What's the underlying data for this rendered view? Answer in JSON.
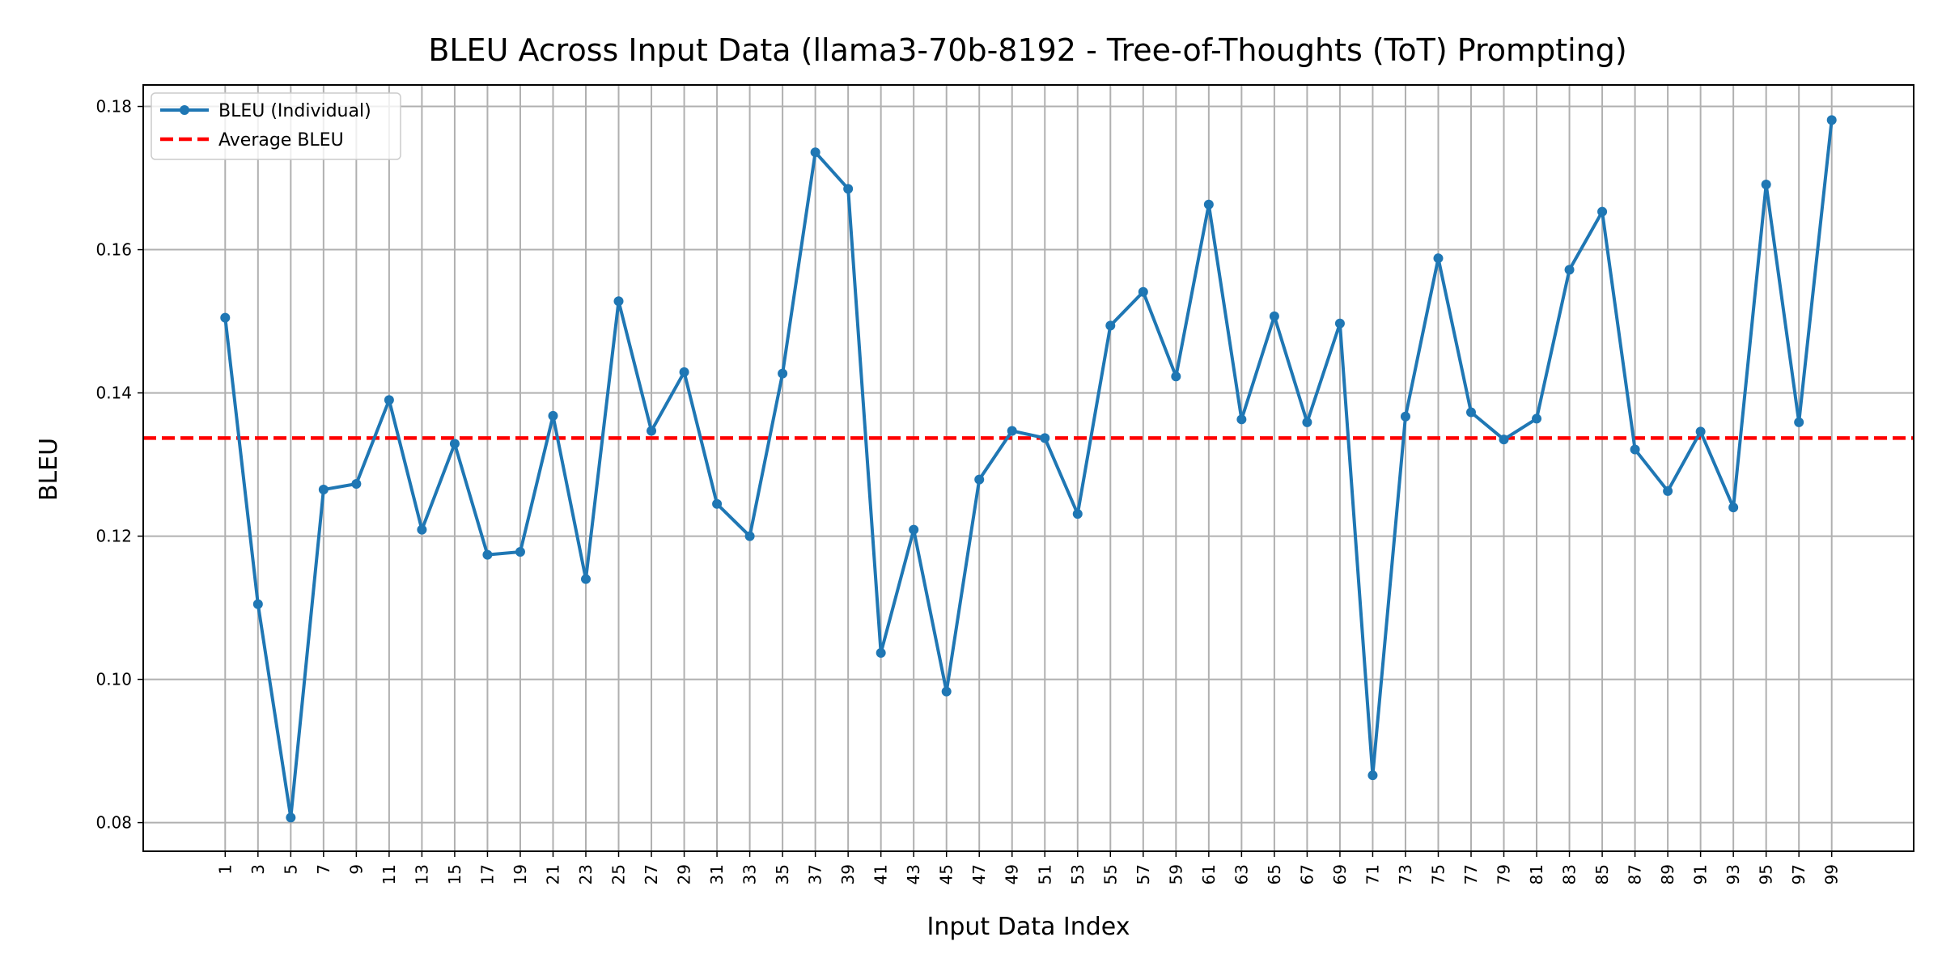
{
  "chart_data": {
    "type": "line",
    "title": "BLEU Across Input Data (llama3-70b-8192 - Tree-of-Thoughts (ToT) Prompting)",
    "xlabel": "Input Data Index",
    "ylabel": "BLEU",
    "x": [
      1,
      3,
      5,
      7,
      9,
      11,
      13,
      15,
      17,
      19,
      21,
      23,
      25,
      27,
      29,
      31,
      33,
      35,
      37,
      39,
      41,
      43,
      45,
      47,
      49,
      51,
      53,
      55,
      57,
      59,
      61,
      63,
      65,
      67,
      69,
      71,
      73,
      75,
      77,
      79,
      81,
      83,
      85,
      87,
      89,
      91,
      93,
      95,
      97,
      99
    ],
    "x_tick_labels": [
      "1",
      "3",
      "5",
      "7",
      "9",
      "11",
      "13",
      "15",
      "17",
      "19",
      "21",
      "23",
      "25",
      "27",
      "29",
      "31",
      "33",
      "35",
      "37",
      "39",
      "41",
      "43",
      "45",
      "47",
      "49",
      "51",
      "53",
      "55",
      "57",
      "59",
      "61",
      "63",
      "65",
      "67",
      "69",
      "71",
      "73",
      "75",
      "77",
      "79",
      "81",
      "83",
      "85",
      "87",
      "89",
      "91",
      "93",
      "95",
      "97",
      "99"
    ],
    "y_ticks": [
      0.08,
      0.1,
      0.12,
      0.14,
      0.16,
      0.18
    ],
    "y_tick_labels": [
      "0.08",
      "0.10",
      "0.12",
      "0.14",
      "0.16",
      "0.18"
    ],
    "xlim": [
      -4,
      104
    ],
    "ylim": [
      0.076,
      0.183
    ],
    "grid": true,
    "legend_position": "top-left",
    "series": [
      {
        "name": "BLEU (Individual)",
        "color": "#1f77b4",
        "style": "solid-line-with-dot-markers",
        "values": [
          0.1505,
          0.1105,
          0.0807,
          0.1265,
          0.1273,
          0.139,
          0.1209,
          0.1329,
          0.1174,
          0.1178,
          0.1368,
          0.114,
          0.1528,
          0.1347,
          0.1429,
          0.1245,
          0.12,
          0.1427,
          0.1736,
          0.1685,
          0.1037,
          0.1209,
          0.0983,
          0.1279,
          0.1347,
          0.1337,
          0.1231,
          0.1494,
          0.1541,
          0.1423,
          0.1663,
          0.1363,
          0.1507,
          0.1359,
          0.1497,
          0.0866,
          0.1367,
          0.1588,
          0.1373,
          0.1335,
          0.1364,
          0.1572,
          0.1653,
          0.1321,
          0.1263,
          0.1346,
          0.124,
          0.1691,
          0.1359,
          0.1781
        ]
      },
      {
        "name": "Average BLEU",
        "color": "#ff0000",
        "style": "dashed-horizontal-line",
        "value": 0.1337
      }
    ]
  }
}
